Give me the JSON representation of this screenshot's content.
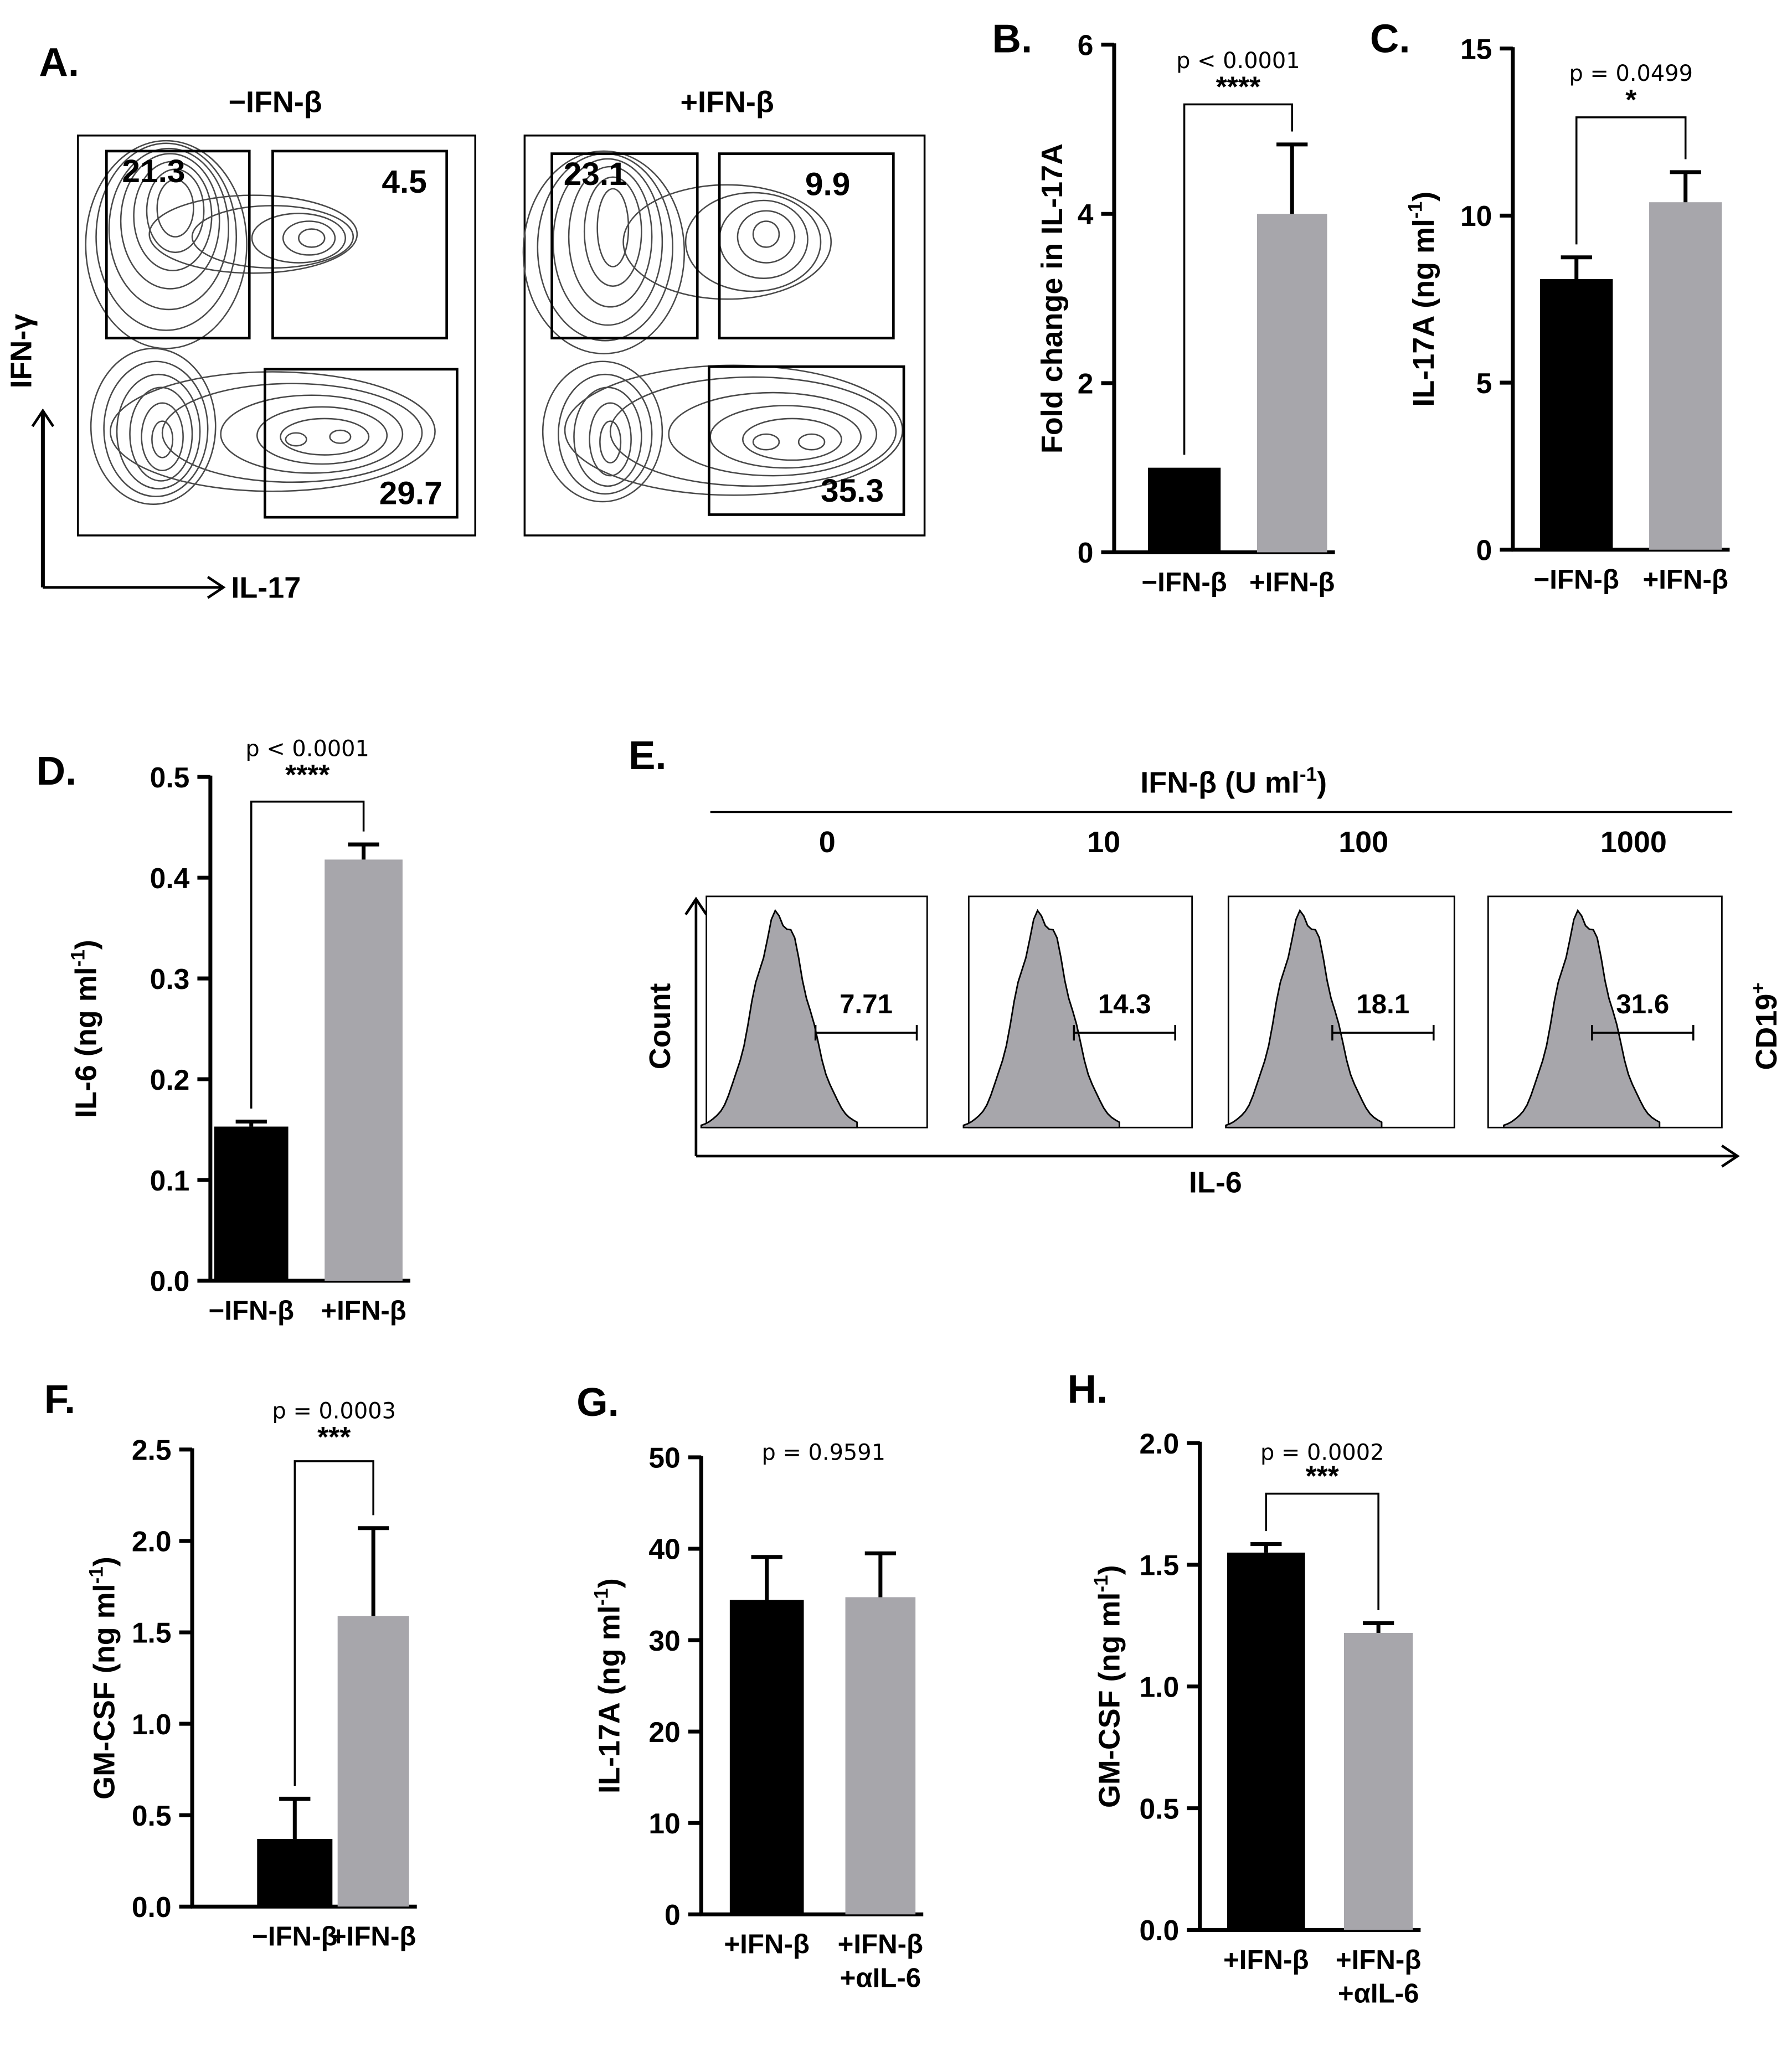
{
  "panels": {
    "A": {
      "label": "A.",
      "conditions": [
        "−IFN-β",
        "+IFN-β"
      ],
      "y_marker": "IFN-γ",
      "x_marker": "IL-17",
      "gates": [
        {
          "top_left": "21.3",
          "top_right": "4.5",
          "bottom_right": "29.7"
        },
        {
          "top_left": "23.1",
          "top_right": "9.9",
          "bottom_right": "35.3"
        }
      ]
    },
    "B": {
      "label": "B."
    },
    "C": {
      "label": "C."
    },
    "D": {
      "label": "D."
    },
    "E": {
      "label": "E.",
      "title": "IFN-β (U ml",
      "title_sup": "-1",
      "title_close": ")",
      "doses": [
        "0",
        "10",
        "100",
        "1000"
      ],
      "positive_pct": [
        "7.71",
        "14.3",
        "18.1",
        "31.6"
      ],
      "ylabel": "Count",
      "xlabel": "IL-6",
      "gate_population": "CD19",
      "gate_population_sup": "+"
    },
    "F": {
      "label": "F."
    },
    "G": {
      "label": "G."
    },
    "H": {
      "label": "H."
    }
  },
  "colors": {
    "bar1": "#000000",
    "bar2": "#a7a6ab",
    "histogram_fill": "#a7a6ab",
    "contour": "#3b3b3b"
  },
  "chart_data": [
    {
      "id": "B",
      "type": "bar",
      "categories": [
        "−IFN-β",
        "+IFN-β"
      ],
      "values": [
        1.0,
        4.0
      ],
      "errors": [
        0,
        0.82
      ],
      "ylabel": "Fold change in IL-17A",
      "ylabel_sup": "",
      "ylabel_tail": "",
      "ylim": [
        0,
        6
      ],
      "yticks": [
        "0",
        "2",
        "4",
        "6"
      ],
      "pvalue": "p < 0.0001",
      "stars": "****"
    },
    {
      "id": "C",
      "type": "bar",
      "categories": [
        "−IFN-β",
        "+IFN-β"
      ],
      "values": [
        8.1,
        10.4
      ],
      "errors": [
        0.65,
        0.9
      ],
      "ylabel": "IL-17A (ng ml",
      "ylabel_sup": "-1",
      "ylabel_tail": ")",
      "ylim": [
        0,
        15
      ],
      "yticks": [
        "0",
        "5",
        "10",
        "15"
      ],
      "pvalue": "p = 0.0499",
      "stars": "*"
    },
    {
      "id": "D",
      "type": "bar",
      "categories": [
        "−IFN-β",
        "+IFN-β"
      ],
      "values": [
        0.153,
        0.418
      ],
      "errors": [
        0.005,
        0.015
      ],
      "ylabel": "IL-6 (ng ml",
      "ylabel_sup": "-1",
      "ylabel_tail": ")",
      "ylim": [
        0,
        0.5
      ],
      "yticks": [
        "0.0",
        "0.1",
        "0.2",
        "0.3",
        "0.4",
        "0.5"
      ],
      "pvalue": "p < 0.0001",
      "stars": "****"
    },
    {
      "id": "F",
      "type": "bar",
      "categories": [
        "−IFN-β",
        "+IFN-β"
      ],
      "values": [
        0.37,
        1.59
      ],
      "errors": [
        0.22,
        0.48
      ],
      "ylabel": "GM-CSF (ng ml",
      "ylabel_sup": "-1",
      "ylabel_tail": ")",
      "ylim": [
        0,
        2.5
      ],
      "yticks": [
        "0.0",
        "0.5",
        "1.0",
        "1.5",
        "2.0",
        "2.5"
      ],
      "pvalue": "p = 0.0003",
      "stars": "***"
    },
    {
      "id": "G",
      "type": "bar",
      "categories": [
        "+IFN-β",
        "+IFN-β\n+αIL-6"
      ],
      "values": [
        34.4,
        34.7
      ],
      "errors": [
        4.7,
        4.8
      ],
      "ylabel": "IL-17A (ng ml",
      "ylabel_sup": "-1",
      "ylabel_tail": ")",
      "ylim": [
        0,
        50
      ],
      "yticks": [
        "0",
        "10",
        "20",
        "30",
        "40",
        "50"
      ],
      "pvalue": "p = 0.9591",
      "stars": ""
    },
    {
      "id": "H",
      "type": "bar",
      "categories": [
        "+IFN-β",
        "+IFN-β\n+αIL-6"
      ],
      "values": [
        1.55,
        1.22
      ],
      "errors": [
        0.035,
        0.04
      ],
      "ylabel": "GM-CSF (ng ml",
      "ylabel_sup": "-1",
      "ylabel_tail": ")",
      "ylim": [
        0,
        2.0
      ],
      "yticks": [
        "0.0",
        "0.5",
        "1.0",
        "1.5",
        "2.0"
      ],
      "pvalue": "p = 0.0002",
      "stars": "***"
    }
  ]
}
